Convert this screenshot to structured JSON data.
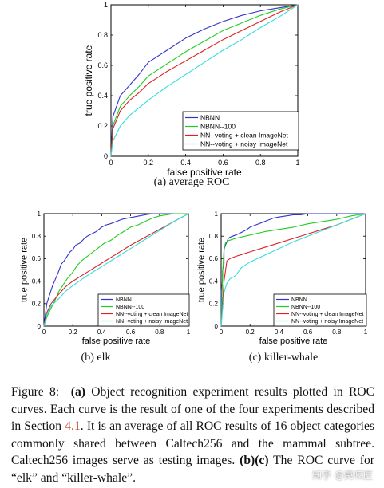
{
  "chart_data": [
    {
      "type": "line",
      "id": "average",
      "xlabel": "false positive rate",
      "ylabel": "true positive rate",
      "xlim": [
        0,
        1
      ],
      "ylim": [
        0,
        1
      ],
      "xticks": [
        "0",
        "0.2",
        "0.4",
        "0.6",
        "0.8",
        "1"
      ],
      "yticks": [
        "0",
        "0.2",
        "0.4",
        "0.6",
        "0.8",
        "1"
      ],
      "legend_position": "bottom-right",
      "series": [
        {
          "name": "NBNN",
          "color": "#3333cc",
          "x": [
            0,
            0.01,
            0.05,
            0.1,
            0.15,
            0.2,
            0.3,
            0.4,
            0.5,
            0.6,
            0.7,
            0.8,
            0.9,
            1.0
          ],
          "y": [
            0,
            0.26,
            0.4,
            0.47,
            0.54,
            0.62,
            0.7,
            0.78,
            0.84,
            0.89,
            0.93,
            0.96,
            0.98,
            1.0
          ]
        },
        {
          "name": "NBNN--100",
          "color": "#22cc22",
          "x": [
            0,
            0.01,
            0.05,
            0.1,
            0.15,
            0.2,
            0.3,
            0.4,
            0.5,
            0.6,
            0.7,
            0.8,
            0.9,
            1.0
          ],
          "y": [
            0,
            0.2,
            0.33,
            0.4,
            0.46,
            0.53,
            0.61,
            0.69,
            0.76,
            0.83,
            0.88,
            0.93,
            0.97,
            1.0
          ]
        },
        {
          "name": "NN--voting + clean ImageNet",
          "color": "#dd2222",
          "x": [
            0,
            0.01,
            0.05,
            0.1,
            0.15,
            0.2,
            0.3,
            0.4,
            0.5,
            0.6,
            0.7,
            0.8,
            0.9,
            1.0
          ],
          "y": [
            0,
            0.18,
            0.3,
            0.37,
            0.42,
            0.48,
            0.56,
            0.63,
            0.7,
            0.77,
            0.83,
            0.89,
            0.95,
            1.0
          ]
        },
        {
          "name": "NN--voting + noisy ImageNet",
          "color": "#33dddd",
          "x": [
            0,
            0.01,
            0.05,
            0.1,
            0.15,
            0.2,
            0.3,
            0.4,
            0.5,
            0.6,
            0.7,
            0.8,
            0.9,
            1.0
          ],
          "y": [
            0,
            0.1,
            0.2,
            0.27,
            0.32,
            0.37,
            0.46,
            0.54,
            0.62,
            0.7,
            0.77,
            0.85,
            0.92,
            1.0
          ]
        }
      ],
      "subcaption": "(a) average ROC"
    },
    {
      "type": "line",
      "id": "elk",
      "xlabel": "false positive rate",
      "ylabel": "true positive rate",
      "xlim": [
        0,
        1
      ],
      "ylim": [
        0,
        1
      ],
      "xticks": [
        "0",
        "0.2",
        "0.4",
        "0.6",
        "0.8",
        "1"
      ],
      "yticks": [
        "0",
        "0.2",
        "0.4",
        "0.6",
        "0.8",
        "1"
      ],
      "legend_position": "bottom-right",
      "series": [
        {
          "name": "NBNN",
          "color": "#3333cc",
          "x": [
            0,
            0.01,
            0.02,
            0.04,
            0.06,
            0.08,
            0.1,
            0.12,
            0.14,
            0.16,
            0.18,
            0.2,
            0.22,
            0.25,
            0.28,
            0.3,
            0.33,
            0.36,
            0.4,
            0.43,
            0.46,
            0.5,
            0.54,
            0.58,
            0.62,
            0.66,
            0.7,
            0.75,
            0.8,
            0.9,
            1.0
          ],
          "y": [
            0,
            0.1,
            0.2,
            0.28,
            0.36,
            0.42,
            0.48,
            0.55,
            0.58,
            0.62,
            0.66,
            0.68,
            0.72,
            0.74,
            0.78,
            0.8,
            0.82,
            0.84,
            0.88,
            0.9,
            0.91,
            0.93,
            0.95,
            0.96,
            0.97,
            0.98,
            0.99,
            1.0,
            1.0,
            1.0,
            1.0
          ]
        },
        {
          "name": "NBNN--100",
          "color": "#22cc22",
          "x": [
            0,
            0.02,
            0.05,
            0.08,
            0.1,
            0.13,
            0.16,
            0.2,
            0.23,
            0.26,
            0.3,
            0.34,
            0.38,
            0.42,
            0.46,
            0.5,
            0.55,
            0.6,
            0.65,
            0.7,
            0.75,
            0.8,
            0.9,
            1.0
          ],
          "y": [
            0,
            0.08,
            0.16,
            0.24,
            0.3,
            0.36,
            0.42,
            0.48,
            0.54,
            0.58,
            0.62,
            0.66,
            0.7,
            0.74,
            0.76,
            0.8,
            0.84,
            0.88,
            0.9,
            0.93,
            0.96,
            0.98,
            1.0,
            1.0
          ]
        },
        {
          "name": "NN--voting + clean ImageNet",
          "color": "#dd2222",
          "x": [
            0,
            0.02,
            0.05,
            0.1,
            0.15,
            0.2,
            0.3,
            0.4,
            0.5,
            0.6,
            0.7,
            0.8,
            0.9,
            1.0
          ],
          "y": [
            0,
            0.12,
            0.2,
            0.28,
            0.35,
            0.4,
            0.48,
            0.56,
            0.64,
            0.72,
            0.79,
            0.86,
            0.93,
            1.0
          ]
        },
        {
          "name": "NN--voting + noisy ImageNet",
          "color": "#33dddd",
          "x": [
            0,
            0.02,
            0.05,
            0.1,
            0.15,
            0.2,
            0.3,
            0.4,
            0.5,
            0.6,
            0.7,
            0.8,
            0.9,
            1.0
          ],
          "y": [
            0,
            0.1,
            0.18,
            0.24,
            0.31,
            0.36,
            0.45,
            0.53,
            0.61,
            0.69,
            0.77,
            0.85,
            0.93,
            1.0
          ]
        }
      ],
      "subcaption": "(b) elk"
    },
    {
      "type": "line",
      "id": "killer-whale",
      "xlabel": "false positive rate",
      "ylabel": "true positive rate",
      "xlim": [
        0,
        1
      ],
      "ylim": [
        0,
        1
      ],
      "xticks": [
        "0",
        "0.2",
        "0.4",
        "0.6",
        "0.8",
        "1"
      ],
      "yticks": [
        "0",
        "0.2",
        "0.4",
        "0.6",
        "0.8",
        "1"
      ],
      "legend_position": "bottom-right",
      "series": [
        {
          "name": "NBNN",
          "color": "#3333cc",
          "x": [
            0,
            0.0,
            0.01,
            0.01,
            0.02,
            0.02,
            0.03,
            0.04,
            0.05,
            0.06,
            0.08,
            0.1,
            0.12,
            0.15,
            0.18,
            0.2,
            0.24,
            0.28,
            0.32,
            0.36,
            0.4,
            0.45,
            0.5,
            0.55,
            0.6,
            0.7,
            0.8,
            1.0
          ],
          "y": [
            0,
            0.3,
            0.4,
            0.5,
            0.55,
            0.68,
            0.72,
            0.75,
            0.78,
            0.79,
            0.8,
            0.81,
            0.82,
            0.84,
            0.86,
            0.88,
            0.9,
            0.92,
            0.94,
            0.96,
            0.97,
            0.98,
            0.99,
            0.99,
            1.0,
            1.0,
            1.0,
            1.0
          ]
        },
        {
          "name": "NBNN--100",
          "color": "#22cc22",
          "x": [
            0,
            0.01,
            0.02,
            0.03,
            0.05,
            0.1,
            0.2,
            0.3,
            0.4,
            0.5,
            0.6,
            0.7,
            0.8,
            0.9,
            1.0
          ],
          "y": [
            0,
            0.48,
            0.68,
            0.74,
            0.76,
            0.78,
            0.81,
            0.84,
            0.86,
            0.88,
            0.91,
            0.93,
            0.95,
            0.98,
            1.0
          ]
        },
        {
          "name": "NN--voting + clean ImageNet",
          "color": "#dd2222",
          "x": [
            0,
            0.02,
            0.04,
            0.06,
            0.1,
            0.15,
            0.2,
            0.3,
            0.4,
            0.5,
            0.6,
            0.7,
            0.8,
            0.9,
            1.0
          ],
          "y": [
            0,
            0.4,
            0.58,
            0.6,
            0.62,
            0.64,
            0.66,
            0.7,
            0.74,
            0.78,
            0.82,
            0.86,
            0.9,
            0.95,
            1.0
          ]
        },
        {
          "name": "NN--voting + noisy ImageNet",
          "color": "#33dddd",
          "x": [
            0,
            0.02,
            0.04,
            0.06,
            0.1,
            0.14,
            0.2,
            0.3,
            0.4,
            0.5,
            0.6,
            0.7,
            0.8,
            0.9,
            1.0
          ],
          "y": [
            0,
            0.3,
            0.38,
            0.42,
            0.45,
            0.52,
            0.57,
            0.63,
            0.69,
            0.75,
            0.8,
            0.85,
            0.9,
            0.95,
            1.0
          ]
        }
      ],
      "subcaption": "(c) killer-whale"
    }
  ],
  "caption": {
    "label": "Figure 8:",
    "part_a": "(a)",
    "text_1": " Object recognition experiment results plotted in ROC curves. Each curve is the result of one of the four experiments described in Section ",
    "ref": "4.1",
    "text_2": ". It is an average of all ROC results of 16 object categories commonly shared between Caltech256 and the mammal subtree. Caltech256 images serve as testing images. ",
    "part_bc": "(b)(c)",
    "text_3": " The ROC curve for “elk” and “killer-whale”."
  },
  "watermark": "知乎 @莫叹匠"
}
